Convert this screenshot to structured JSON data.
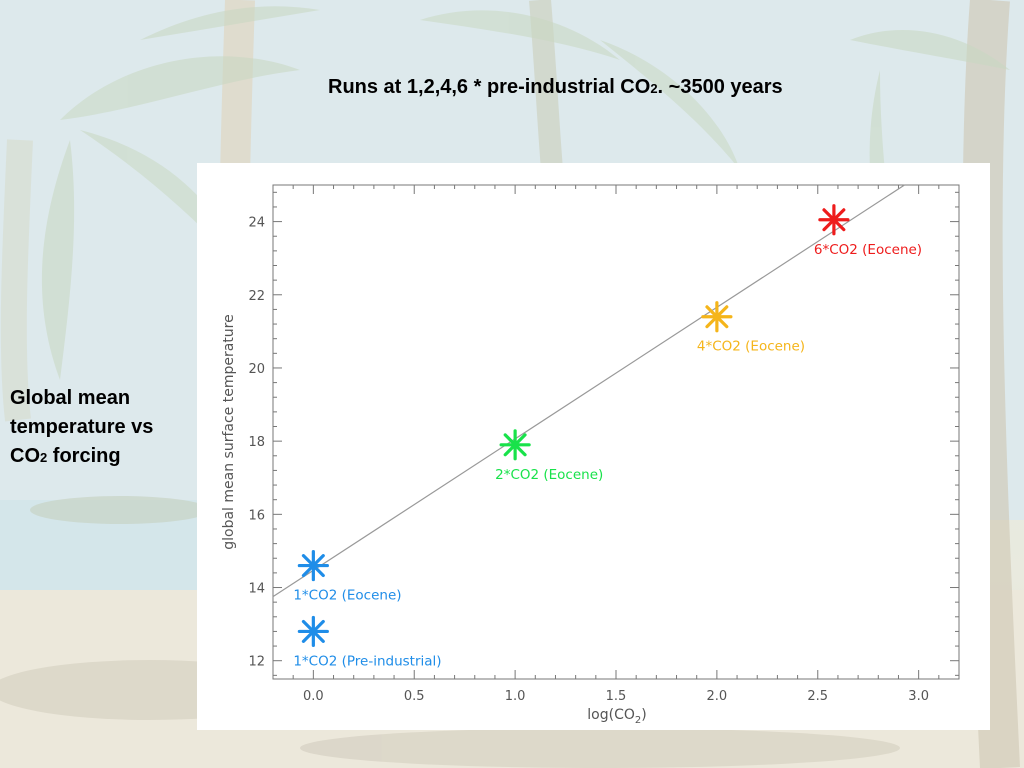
{
  "slide": {
    "title_main": "Runs at 1,2,4,6 * pre-industrial CO",
    "title_sub": "2",
    "title_tail": ".  ~3500 years",
    "side_line1": "Global mean",
    "side_line2": "temperature vs",
    "side_line3_pre": "CO",
    "side_line3_sub": "2",
    "side_line3_post": " forcing"
  },
  "chart_data": {
    "type": "scatter",
    "xlabel_main": "log(CO",
    "xlabel_sub": "2",
    "xlabel_close": ")",
    "ylabel": "global mean surface temperature",
    "xlim": [
      -0.2,
      3.2
    ],
    "ylim": [
      11.5,
      25
    ],
    "x_ticks": [
      0.0,
      0.5,
      1.0,
      1.5,
      2.0,
      2.5,
      3.0
    ],
    "x_tick_labels": [
      "0.0",
      "0.5",
      "1.0",
      "1.5",
      "2.0",
      "2.5",
      "3.0"
    ],
    "y_ticks": [
      12,
      14,
      16,
      18,
      20,
      22,
      24
    ],
    "y_tick_labels": [
      "12",
      "14",
      "16",
      "18",
      "20",
      "22",
      "24"
    ],
    "grid": false,
    "points": [
      {
        "x": 0.0,
        "y": 12.8,
        "label": "1*CO2 (Pre-industrial)",
        "color": "#1f8de8"
      },
      {
        "x": 0.0,
        "y": 14.6,
        "label": "1*CO2 (Eocene)",
        "color": "#1f8de8"
      },
      {
        "x": 1.0,
        "y": 17.9,
        "label": "2*CO2 (Eocene)",
        "color": "#18e24a"
      },
      {
        "x": 2.0,
        "y": 21.4,
        "label": "4*CO2 (Eocene)",
        "color": "#f5b51a"
      },
      {
        "x": 2.58,
        "y": 24.05,
        "label": "6*CO2 (Eocene)",
        "color": "#ee1c1c"
      }
    ],
    "fit_line": {
      "x": [
        -0.2,
        2.93
      ],
      "y": [
        13.75,
        25.0
      ],
      "color": "#999999"
    }
  }
}
